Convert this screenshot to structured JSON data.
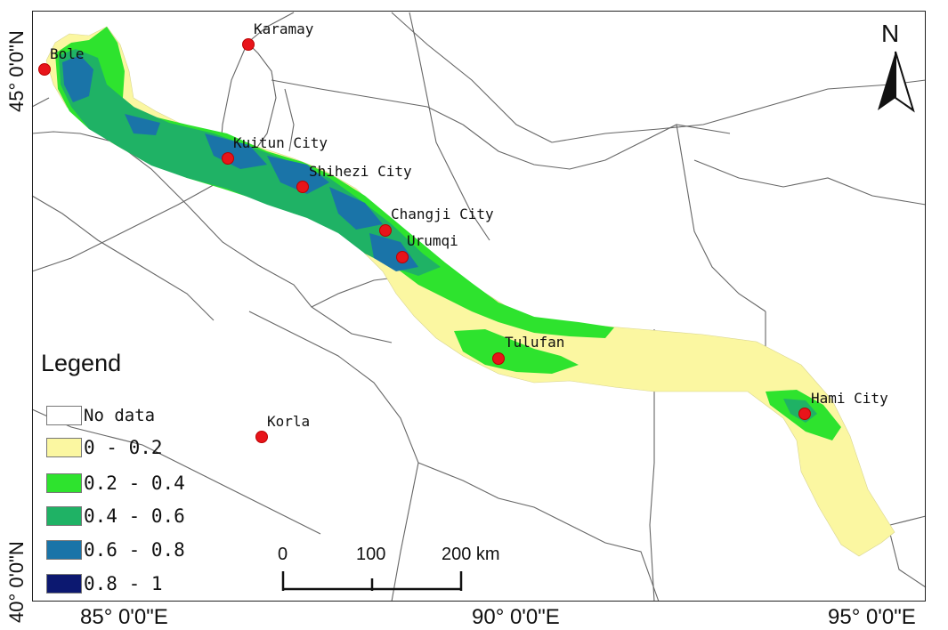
{
  "map": {
    "north_label": "N",
    "longitude_labels": [
      "85° 0'0\"E",
      "90° 0'0\"E",
      "95° 0'0\"E"
    ],
    "latitude_labels": [
      "45° 0'0\"N",
      "40° 0'0\"N"
    ],
    "cities": [
      {
        "name": "Bole"
      },
      {
        "name": "Karamay"
      },
      {
        "name": "Kuitun City"
      },
      {
        "name": "Shihezi City"
      },
      {
        "name": "Changji City"
      },
      {
        "name": "Urumqi"
      },
      {
        "name": "Tulufan"
      },
      {
        "name": "Hami City"
      },
      {
        "name": "Korla"
      }
    ],
    "legend": {
      "title": "Legend",
      "items": [
        {
          "label": "No data",
          "color": "#ffffff"
        },
        {
          "label": "0 - 0.2",
          "color": "#fbf7a1"
        },
        {
          "label": "0.2 - 0.4",
          "color": "#2ee32e"
        },
        {
          "label": "0.4 - 0.6",
          "color": "#1fb265"
        },
        {
          "label": "0.6 - 0.8",
          "color": "#1a74a8"
        },
        {
          "label": "0.8 - 1",
          "color": "#0c1870"
        }
      ]
    },
    "scale_bar": {
      "labels": [
        "0",
        "100",
        "200 km"
      ]
    }
  }
}
